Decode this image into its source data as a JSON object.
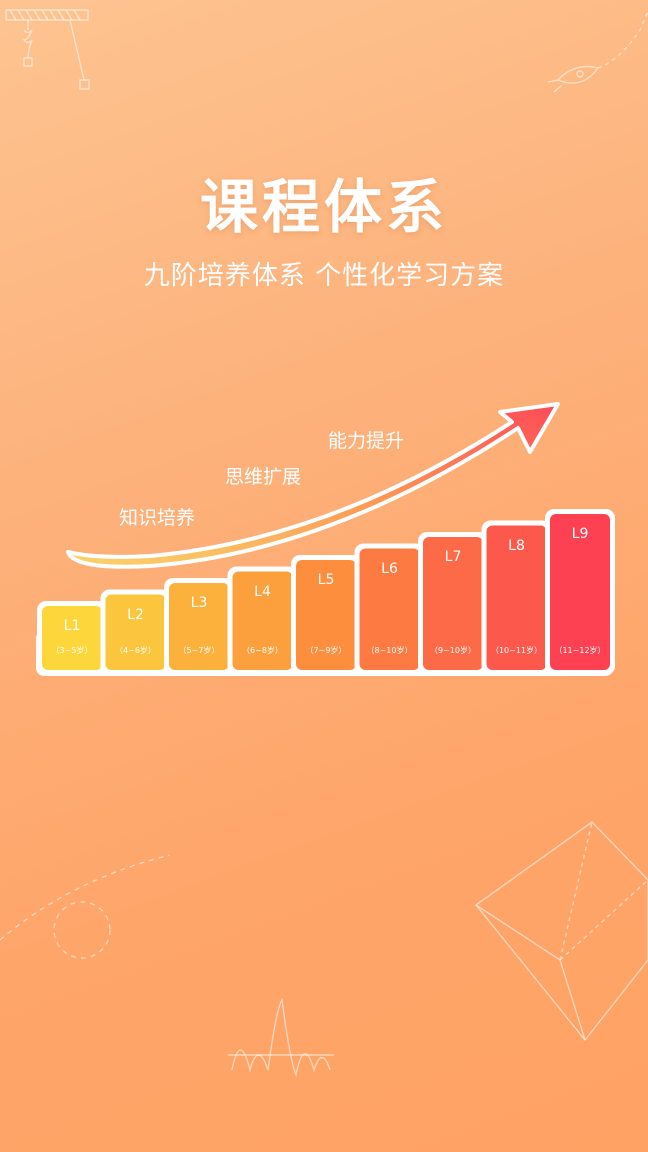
{
  "title": "课程体系",
  "subtitle": "九阶培养体系 个性化学习方案",
  "stages": [
    "知识培养",
    "思维扩展",
    "能力提升"
  ],
  "levels": [
    {
      "name": "L1",
      "age": "（3~5岁）",
      "color": "#fdd63c"
    },
    {
      "name": "L2",
      "age": "（4~6岁）",
      "color": "#fbc53e"
    },
    {
      "name": "L3",
      "age": "（5~7岁）",
      "color": "#fcb13d"
    },
    {
      "name": "L4",
      "age": "（6~8岁）",
      "color": "#fca03d"
    },
    {
      "name": "L5",
      "age": "（7~9岁）",
      "color": "#fd8e3d"
    },
    {
      "name": "L6",
      "age": "（8~10岁）",
      "color": "#fd7b42"
    },
    {
      "name": "L7",
      "age": "（9~10岁）",
      "color": "#fd6a47"
    },
    {
      "name": "L8",
      "age": "（10~11岁）",
      "color": "#fd584c"
    },
    {
      "name": "L9",
      "age": "（11~12岁）",
      "color": "#fd4153"
    }
  ]
}
